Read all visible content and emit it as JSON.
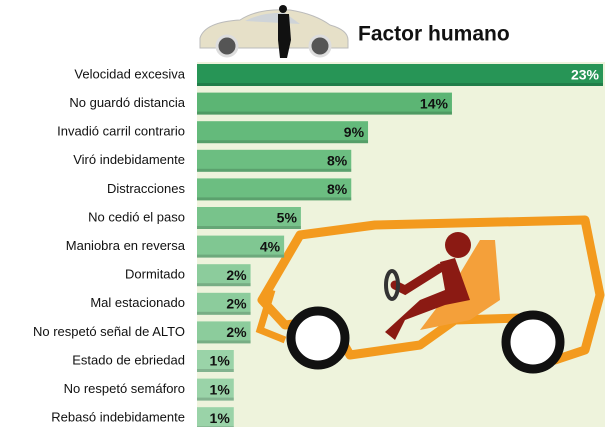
{
  "chart_data": {
    "type": "hbar",
    "title": "Factor humano",
    "categories": [
      "Velocidad excesiva",
      "No guardó distancia",
      "Invadió carril contrario",
      "Viró indebidamente",
      "Distracciones",
      "No cedió el paso",
      "Maniobra en reversa",
      "Dormitado",
      "Mal estacionado",
      "No respetó señal de ALTO",
      "Estado de ebriedad",
      "No respetó semáforo",
      "Rebasó indebidamente"
    ],
    "values": [
      23,
      14,
      9,
      8,
      8,
      5,
      4,
      2,
      2,
      2,
      1,
      1,
      1
    ],
    "value_labels": [
      "23%",
      "14%",
      "9%",
      "8%",
      "8%",
      "5%",
      "4%",
      "2%",
      "2%",
      "2%",
      "1%",
      "1%",
      "1%"
    ],
    "colors": [
      "#279556",
      "#5cb574",
      "#64ba7b",
      "#6cbe81",
      "#6cbe81",
      "#78c38b",
      "#80c792",
      "#8ccc9c",
      "#8ccc9c",
      "#8ccc9c",
      "#9ad3a8",
      "#9ad3a8",
      "#9ad3a8"
    ]
  }
}
